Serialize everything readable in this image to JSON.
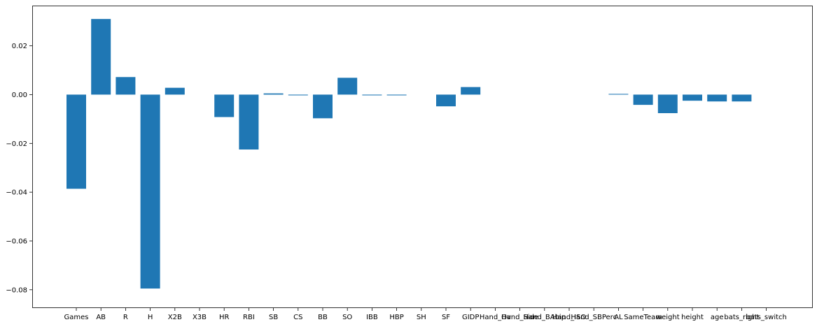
{
  "chart_data": {
    "type": "bar",
    "title": "",
    "xlabel": "",
    "ylabel": "",
    "ylim": [
      -0.0875,
      0.0365
    ],
    "yticks": [
      0.02,
      0.0,
      -0.02,
      -0.04,
      -0.06,
      -0.08
    ],
    "ytick_labels": [
      "0.02",
      "0.00",
      "−0.02",
      "−0.04",
      "−0.06",
      "−0.08"
    ],
    "grid": false,
    "bar_color": "#1f77b4",
    "categories": [
      "Games",
      "AB",
      "R",
      "H",
      "X2B",
      "X3B",
      "HR",
      "RBI",
      "SB",
      "CS",
      "BB",
      "SO",
      "IBB",
      "HBP",
      "SH",
      "SF",
      "GIDP",
      "Hand_Ov",
      "Hand_Side",
      "Hand_BAbip",
      "Hand_ISO",
      "Hand_SBPerc",
      "AL",
      "SameTeam",
      "weight",
      "height",
      "age",
      "bats_right",
      "bats_switch"
    ],
    "values": [
      -0.0386,
      0.031,
      0.0072,
      -0.0795,
      0.0028,
      0.0,
      -0.0092,
      -0.0225,
      0.0005,
      -0.0003,
      -0.0097,
      0.0069,
      -0.0003,
      -0.0003,
      0.0,
      -0.0048,
      0.0031,
      0.0,
      0.0,
      0.0,
      0.0,
      0.0,
      0.0003,
      -0.0042,
      -0.0076,
      -0.0025,
      -0.0028,
      -0.0028,
      0.0
    ]
  }
}
